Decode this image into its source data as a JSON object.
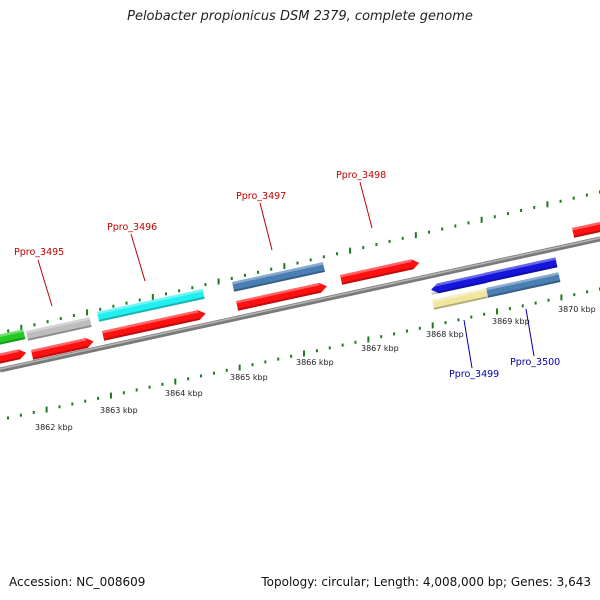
{
  "title": "Pelobacter propionicus DSM 2379, complete genome",
  "accession": "Accession: NC_008609",
  "summary": "Topology: circular; Length: 4,008,000 bp; Genes: 3,643",
  "colors": {
    "backbone": "#8c8c8c",
    "tick": "#1e7a1e",
    "forward_label": "#c00000",
    "reverse_label": "#0000aa",
    "red_gene": "#ff1010",
    "green_gene": "#22cc22",
    "gray_gene": "#bdbdbd",
    "cyan_gene": "#22f0f0",
    "steelblue_gene": "#4a7fb3",
    "blue_gene": "#1515dd",
    "khaki_gene": "#f0e6a0"
  },
  "scale_labels": [
    "3862 kbp",
    "3863 kbp",
    "3864 kbp",
    "3865 kbp",
    "3866 kbp",
    "3867 kbp",
    "3868 kbp",
    "3869 kbp",
    "3870 kbp"
  ],
  "gene_labels": [
    "Ppro_3495",
    "Ppro_3496",
    "Ppro_3497",
    "Ppro_3498",
    "Ppro_3499",
    "Ppro_3500"
  ]
}
